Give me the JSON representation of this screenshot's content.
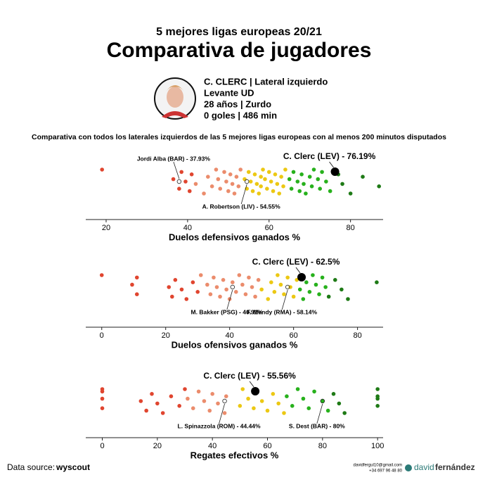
{
  "header": {
    "subtitle": "5 mejores ligas europeas 20/21",
    "title": "Comparativa de jugadores",
    "player": [
      "C. CLERC | Lateral izquierdo",
      "Levante UD",
      "28 años | Zurdo",
      "0 goles | 486 min"
    ],
    "description": "Comparativa con todos los laterales izquierdos de las 5 mejores ligas europeas con al menos 200 minutos disputados"
  },
  "chart_data": [
    {
      "type": "strip",
      "xlabel": "Duelos defensivos ganados %",
      "xlim": [
        15,
        88
      ],
      "xticks": [
        20,
        40,
        60,
        80
      ],
      "groups": [
        {
          "color": "#e0452f",
          "values": [
            19,
            36.5,
            37.93,
            38.5,
            39.5,
            40.5,
            41
          ]
        },
        {
          "color": "#eb8c6c",
          "values": [
            42,
            44,
            45,
            46,
            47,
            47.5,
            48,
            49,
            49.5,
            50,
            50.5,
            51,
            51.5,
            52,
            52.5,
            53
          ]
        },
        {
          "color": "#ecc813",
          "values": [
            54,
            54.55,
            55,
            55.5,
            56,
            56.5,
            57,
            57.5,
            58,
            58,
            58.5,
            59,
            59.5,
            60,
            60.5,
            61,
            61.5,
            62,
            62.5,
            63,
            63.5,
            64
          ]
        },
        {
          "color": "#27b11c",
          "values": [
            65,
            65.5,
            66,
            67,
            67.5,
            68,
            68.5,
            69,
            70,
            70.5,
            71,
            72,
            72.5,
            73,
            74,
            75
          ]
        },
        {
          "color": "#1e7a16",
          "values": [
            77,
            78,
            80,
            83,
            87
          ]
        }
      ],
      "highlight": {
        "text": "C. Clerc (LEV) - 76.19%",
        "value": 76.19
      },
      "annotations": [
        {
          "text": "Jordi Alba (BAR) - 37.93%",
          "value": 37.93,
          "side": "above"
        },
        {
          "text": "A. Robertson (LIV) - 54.55%",
          "value": 54.55,
          "side": "below"
        }
      ]
    },
    {
      "type": "strip",
      "xlabel": "Duelos ofensivos ganados %",
      "xlim": [
        -5,
        88
      ],
      "xticks": [
        0,
        20,
        40,
        60,
        80
      ],
      "groups": [
        {
          "color": "#e0452f",
          "values": [
            0,
            9.5,
            11,
            11,
            21,
            22,
            23,
            25,
            26.5,
            28.5,
            30
          ]
        },
        {
          "color": "#eb8c6c",
          "values": [
            31,
            33,
            34,
            35,
            36,
            37,
            38,
            39,
            40,
            40.91,
            42,
            43,
            44,
            45,
            46,
            47,
            48,
            49
          ]
        },
        {
          "color": "#ecc813",
          "values": [
            50,
            52,
            53,
            54,
            55,
            56,
            57,
            58.14,
            59,
            60,
            61
          ]
        },
        {
          "color": "#27b11c",
          "values": [
            62,
            63,
            64,
            65,
            66,
            67,
            68,
            69,
            70
          ]
        },
        {
          "color": "#1e7a16",
          "values": [
            71,
            73,
            75,
            77,
            86
          ]
        }
      ],
      "highlight": {
        "text": "C. Clerc (LEV) - 62.5%",
        "value": 62.5
      },
      "annotations": [
        {
          "text": "M. Bakker (PSG) - 40.91%",
          "value": 40.91,
          "side": "below"
        },
        {
          "text": "F. Mendy (RMA) - 58.14%",
          "value": 58.14,
          "side": "below"
        }
      ]
    },
    {
      "type": "strip",
      "xlabel": "Regates efectivos %",
      "xlim": [
        -6,
        102
      ],
      "xticks": [
        0,
        20,
        40,
        60,
        80,
        100
      ],
      "groups": [
        {
          "color": "#e0452f",
          "values": [
            0,
            0,
            0,
            0,
            14,
            16,
            18,
            20,
            22,
            25,
            28,
            30
          ]
        },
        {
          "color": "#eb8c6c",
          "values": [
            31,
            33,
            35,
            37,
            39,
            40,
            42,
            44.44,
            45
          ]
        },
        {
          "color": "#ecc813",
          "values": [
            50,
            51,
            53,
            55,
            56,
            58,
            60,
            62,
            64,
            66
          ]
        },
        {
          "color": "#27b11c",
          "values": [
            67,
            69,
            71,
            73,
            75,
            77,
            80,
            82
          ]
        },
        {
          "color": "#1e7a16",
          "values": [
            84,
            86,
            88,
            100,
            100,
            100,
            100
          ]
        }
      ],
      "highlight": {
        "text": "C. Clerc (LEV) - 55.56%",
        "value": 55.56
      },
      "annotations": [
        {
          "text": "L. Spinazzola (ROM) - 44.44%",
          "value": 44.44,
          "side": "below"
        },
        {
          "text": "S. Dest (BAR) - 80%",
          "value": 80,
          "side": "below"
        }
      ]
    }
  ],
  "footer": {
    "source_label": "Data source:",
    "source": "wyscout",
    "email": "davidfergul10@gmail.com",
    "phone": "+34 697 96 48 80",
    "brand_a": "david",
    "brand_b": "fernández"
  }
}
